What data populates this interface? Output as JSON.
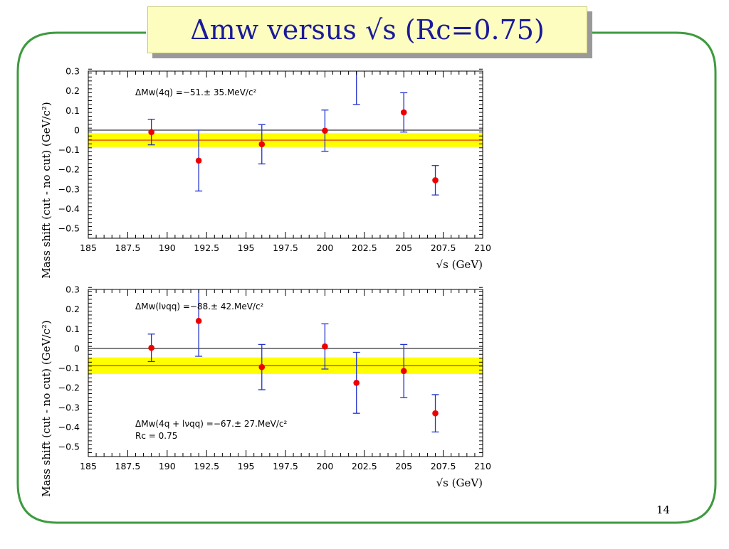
{
  "slide": {
    "title": "Δmw versus √s (Rc=0.75)",
    "page_number": "14"
  },
  "colors": {
    "frame": "#3f9a3f",
    "title_bg": "#fdfdc0",
    "title_text": "#1a1a9a",
    "band": "#ffff00",
    "mean_line": "#e02020",
    "points": "#ee0000",
    "errorbars": "#2233cc"
  },
  "chart_data": [
    {
      "type": "scatter",
      "xlabel": "√s (GeV)",
      "ylabel": "Mass shift (cut - no cut) (GeV/c²)",
      "xlim": [
        185,
        210
      ],
      "ylim": [
        -0.55,
        0.3
      ],
      "x_ticks": [
        "185",
        "187.5",
        "190",
        "192.5",
        "195",
        "197.5",
        "200",
        "202.5",
        "205",
        "207.5",
        "210"
      ],
      "y_ticks": [
        "0.3",
        "0.2",
        "0.1",
        "0",
        "−0.1",
        "−0.2",
        "−0.3",
        "−0.4",
        "−0.5"
      ],
      "annotations": [
        "ΔMw(4q) =−51.± 35.MeV/c²"
      ],
      "mean": -0.051,
      "band": [
        -0.086,
        -0.016
      ],
      "points": [
        {
          "x": 189,
          "y": -0.01,
          "err_low": 0.065,
          "err_high": 0.065
        },
        {
          "x": 192,
          "y": -0.155,
          "err_low": 0.155,
          "err_high": 0.155
        },
        {
          "x": 196,
          "y": -0.072,
          "err_low": 0.1,
          "err_high": 0.1
        },
        {
          "x": 200,
          "y": -0.003,
          "err_low": 0.105,
          "err_high": 0.105
        },
        {
          "x": 202,
          "y": null,
          "err_low": 0.17,
          "err_high": null,
          "note": "point above frame"
        },
        {
          "x": 205,
          "y": 0.09,
          "err_low": 0.1,
          "err_high": 0.1
        },
        {
          "x": 207,
          "y": -0.255,
          "err_low": 0.075,
          "err_high": 0.075
        }
      ]
    },
    {
      "type": "scatter",
      "xlabel": "√s (GeV)",
      "ylabel": "Mass shift (cut - no cut) (GeV/c²)",
      "xlim": [
        185,
        210
      ],
      "ylim": [
        -0.55,
        0.3
      ],
      "x_ticks": [
        "185",
        "187.5",
        "190",
        "192.5",
        "195",
        "197.5",
        "200",
        "202.5",
        "205",
        "207.5",
        "210"
      ],
      "y_ticks": [
        "0.3",
        "0.2",
        "0.1",
        "0",
        "−0.1",
        "−0.2",
        "−0.3",
        "−0.4",
        "−0.5"
      ],
      "annotations": [
        "ΔMw(lνqq) =−88.± 42.MeV/c²",
        "ΔMw(4q + lνqq) =−67.± 27.MeV/c²",
        "Rc = 0.75"
      ],
      "mean": -0.088,
      "band": [
        -0.13,
        -0.046
      ],
      "points": [
        {
          "x": 189,
          "y": 0.003,
          "err_low": 0.07,
          "err_high": 0.07
        },
        {
          "x": 192,
          "y": 0.14,
          "err_low": 0.18,
          "err_high": 0.18
        },
        {
          "x": 196,
          "y": -0.095,
          "err_low": 0.115,
          "err_high": 0.115
        },
        {
          "x": 200,
          "y": 0.01,
          "err_low": 0.115,
          "err_high": 0.115
        },
        {
          "x": 202,
          "y": -0.175,
          "err_low": 0.155,
          "err_high": 0.155
        },
        {
          "x": 205,
          "y": -0.115,
          "err_low": 0.135,
          "err_high": 0.135
        },
        {
          "x": 207,
          "y": -0.33,
          "err_low": 0.095,
          "err_high": 0.095
        }
      ]
    }
  ]
}
